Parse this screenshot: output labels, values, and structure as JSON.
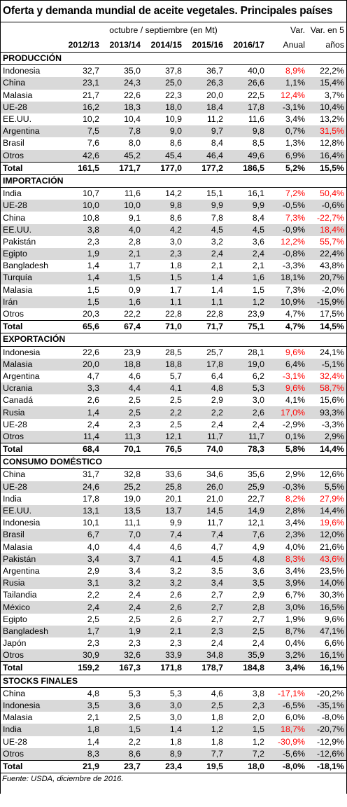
{
  "title": "Oferta y demanda mundial de aceite vegetales. Principales países",
  "header": {
    "period_label": "octubre / septiembre (en Mt)",
    "var_label": "Var.",
    "var5_label": "Var. en 5",
    "years": [
      "2012/13",
      "2013/14",
      "2014/15",
      "2015/16",
      "2016/17"
    ],
    "anual_label": "Anual",
    "anos_label": "años"
  },
  "sections": [
    {
      "name": "PRODUCCIÓN",
      "rows": [
        {
          "label": "Indonesia",
          "values": [
            "32,7",
            "35,0",
            "37,8",
            "36,7",
            "40,0"
          ],
          "anual": "8,9%",
          "anual_red": true,
          "var5": "22,2%",
          "var5_red": false
        },
        {
          "label": "China",
          "values": [
            "23,1",
            "24,3",
            "25,0",
            "26,3",
            "26,6"
          ],
          "anual": "1,1%",
          "anual_red": false,
          "var5": "15,4%",
          "var5_red": false
        },
        {
          "label": "Malasia",
          "values": [
            "21,7",
            "22,6",
            "22,3",
            "20,0",
            "22,5"
          ],
          "anual": "12,4%",
          "anual_red": true,
          "var5": "3,7%",
          "var5_red": false
        },
        {
          "label": "UE-28",
          "values": [
            "16,2",
            "18,3",
            "18,0",
            "18,4",
            "17,8"
          ],
          "anual": "-3,1%",
          "anual_red": false,
          "var5": "10,4%",
          "var5_red": false
        },
        {
          "label": "EE.UU.",
          "values": [
            "10,2",
            "10,4",
            "10,9",
            "11,2",
            "11,6"
          ],
          "anual": "3,4%",
          "anual_red": false,
          "var5": "13,2%",
          "var5_red": false
        },
        {
          "label": "Argentina",
          "values": [
            "7,5",
            "7,8",
            "9,0",
            "9,7",
            "9,8"
          ],
          "anual": "0,7%",
          "anual_red": false,
          "var5": "31,5%",
          "var5_red": true
        },
        {
          "label": "Brasil",
          "values": [
            "7,6",
            "8,0",
            "8,6",
            "8,4",
            "8,5"
          ],
          "anual": "1,3%",
          "anual_red": false,
          "var5": "12,8%",
          "var5_red": false
        },
        {
          "label": "Otros",
          "values": [
            "42,6",
            "45,2",
            "45,4",
            "46,4",
            "49,6"
          ],
          "anual": "6,9%",
          "anual_red": false,
          "var5": "16,4%",
          "var5_red": false
        }
      ],
      "total": {
        "label": "Total",
        "values": [
          "161,5",
          "171,7",
          "177,0",
          "177,2",
          "186,5"
        ],
        "anual": "5,2%",
        "var5": "15,5%"
      }
    },
    {
      "name": "IMPORTACIÓN",
      "rows": [
        {
          "label": "India",
          "values": [
            "10,7",
            "11,6",
            "14,2",
            "15,1",
            "16,1"
          ],
          "anual": "7,2%",
          "anual_red": true,
          "var5": "50,4%",
          "var5_red": true
        },
        {
          "label": "UE-28",
          "values": [
            "10,0",
            "10,0",
            "9,8",
            "9,9",
            "9,9"
          ],
          "anual": "-0,5%",
          "anual_red": false,
          "var5": "-0,6%",
          "var5_red": false
        },
        {
          "label": "China",
          "values": [
            "10,8",
            "9,1",
            "8,6",
            "7,8",
            "8,4"
          ],
          "anual": "7,3%",
          "anual_red": true,
          "var5": "-22,7%",
          "var5_red": true
        },
        {
          "label": "EE.UU.",
          "values": [
            "3,8",
            "4,0",
            "4,2",
            "4,5",
            "4,5"
          ],
          "anual": "-0,9%",
          "anual_red": false,
          "var5": "18,4%",
          "var5_red": true
        },
        {
          "label": "Pakistán",
          "values": [
            "2,3",
            "2,8",
            "3,0",
            "3,2",
            "3,6"
          ],
          "anual": "12,2%",
          "anual_red": true,
          "var5": "55,7%",
          "var5_red": true
        },
        {
          "label": "Egipto",
          "values": [
            "1,9",
            "2,1",
            "2,3",
            "2,4",
            "2,4"
          ],
          "anual": "-0,8%",
          "anual_red": false,
          "var5": "22,4%",
          "var5_red": false
        },
        {
          "label": "Bangladesh",
          "values": [
            "1,4",
            "1,7",
            "1,8",
            "2,1",
            "2,1"
          ],
          "anual": "-3,3%",
          "anual_red": false,
          "var5": "43,8%",
          "var5_red": false
        },
        {
          "label": "Turquía",
          "values": [
            "1,4",
            "1,5",
            "1,5",
            "1,4",
            "1,6"
          ],
          "anual": "18,1%",
          "anual_red": false,
          "var5": "20,7%",
          "var5_red": false
        },
        {
          "label": "Malasia",
          "values": [
            "1,5",
            "0,9",
            "1,7",
            "1,4",
            "1,5"
          ],
          "anual": "7,3%",
          "anual_red": false,
          "var5": "-2,0%",
          "var5_red": false
        },
        {
          "label": "Irán",
          "values": [
            "1,5",
            "1,6",
            "1,1",
            "1,1",
            "1,2"
          ],
          "anual": "10,9%",
          "anual_red": false,
          "var5": "-15,9%",
          "var5_red": false
        },
        {
          "label": "Otros",
          "values": [
            "20,3",
            "22,2",
            "22,8",
            "22,8",
            "23,9"
          ],
          "anual": "4,7%",
          "anual_red": false,
          "var5": "17,5%",
          "var5_red": false
        }
      ],
      "total": {
        "label": "Total",
        "values": [
          "65,6",
          "67,4",
          "71,0",
          "71,7",
          "75,1"
        ],
        "anual": "4,7%",
        "var5": "14,5%"
      }
    },
    {
      "name": "EXPORTACIÓN",
      "rows": [
        {
          "label": "Indonesia",
          "values": [
            "22,6",
            "23,9",
            "28,5",
            "25,7",
            "28,1"
          ],
          "anual": "9,6%",
          "anual_red": true,
          "var5": "24,1%",
          "var5_red": false
        },
        {
          "label": "Malasia",
          "values": [
            "20,0",
            "18,8",
            "18,8",
            "17,8",
            "19,0"
          ],
          "anual": "6,4%",
          "anual_red": false,
          "var5": "-5,1%",
          "var5_red": false
        },
        {
          "label": "Argentina",
          "values": [
            "4,7",
            "4,6",
            "5,7",
            "6,4",
            "6,2"
          ],
          "anual": "-3,1%",
          "anual_red": true,
          "var5": "32,4%",
          "var5_red": true
        },
        {
          "label": "Ucrania",
          "values": [
            "3,3",
            "4,4",
            "4,1",
            "4,8",
            "5,3"
          ],
          "anual": "9,6%",
          "anual_red": true,
          "var5": "58,7%",
          "var5_red": true
        },
        {
          "label": "Canadá",
          "values": [
            "2,6",
            "2,5",
            "2,5",
            "2,9",
            "3,0"
          ],
          "anual": "4,1%",
          "anual_red": false,
          "var5": "15,6%",
          "var5_red": false
        },
        {
          "label": "Rusia",
          "values": [
            "1,4",
            "2,5",
            "2,2",
            "2,2",
            "2,6"
          ],
          "anual": "17,0%",
          "anual_red": true,
          "var5": "93,3%",
          "var5_red": false
        },
        {
          "label": "UE-28",
          "values": [
            "2,4",
            "2,3",
            "2,5",
            "2,4",
            "2,4"
          ],
          "anual": "-2,9%",
          "anual_red": false,
          "var5": "-3,3%",
          "var5_red": false
        },
        {
          "label": "Otros",
          "values": [
            "11,4",
            "11,3",
            "12,1",
            "11,7",
            "11,7"
          ],
          "anual": "0,1%",
          "anual_red": false,
          "var5": "2,9%",
          "var5_red": false
        }
      ],
      "total": {
        "label": "Total",
        "values": [
          "68,4",
          "70,1",
          "76,5",
          "74,0",
          "78,3"
        ],
        "anual": "5,8%",
        "var5": "14,4%"
      }
    },
    {
      "name": "CONSUMO DOMÉSTICO",
      "rows": [
        {
          "label": "China",
          "values": [
            "31,7",
            "32,8",
            "33,6",
            "34,6",
            "35,6"
          ],
          "anual": "2,9%",
          "anual_red": false,
          "var5": "12,6%",
          "var5_red": false
        },
        {
          "label": "UE-28",
          "values": [
            "24,6",
            "25,2",
            "25,8",
            "26,0",
            "25,9"
          ],
          "anual": "-0,3%",
          "anual_red": false,
          "var5": "5,5%",
          "var5_red": false
        },
        {
          "label": "India",
          "values": [
            "17,8",
            "19,0",
            "20,1",
            "21,0",
            "22,7"
          ],
          "anual": "8,2%",
          "anual_red": true,
          "var5": "27,9%",
          "var5_red": true
        },
        {
          "label": "EE.UU.",
          "values": [
            "13,1",
            "13,5",
            "13,7",
            "14,5",
            "14,9"
          ],
          "anual": "2,8%",
          "anual_red": false,
          "var5": "14,4%",
          "var5_red": false
        },
        {
          "label": "Indonesia",
          "values": [
            "10,1",
            "11,1",
            "9,9",
            "11,7",
            "12,1"
          ],
          "anual": "3,4%",
          "anual_red": false,
          "var5": "19,6%",
          "var5_red": true
        },
        {
          "label": "Brasil",
          "values": [
            "6,7",
            "7,0",
            "7,4",
            "7,4",
            "7,6"
          ],
          "anual": "2,3%",
          "anual_red": false,
          "var5": "12,0%",
          "var5_red": false
        },
        {
          "label": "Malasia",
          "values": [
            "4,0",
            "4,4",
            "4,6",
            "4,7",
            "4,9"
          ],
          "anual": "4,0%",
          "anual_red": false,
          "var5": "21,6%",
          "var5_red": false
        },
        {
          "label": "Pakistán",
          "values": [
            "3,4",
            "3,7",
            "4,1",
            "4,5",
            "4,8"
          ],
          "anual": "8,3%",
          "anual_red": true,
          "var5": "43,6%",
          "var5_red": true
        },
        {
          "label": "Argentina",
          "values": [
            "2,9",
            "3,4",
            "3,2",
            "3,5",
            "3,6"
          ],
          "anual": "3,4%",
          "anual_red": false,
          "var5": "23,5%",
          "var5_red": false
        },
        {
          "label": "Rusia",
          "values": [
            "3,1",
            "3,2",
            "3,2",
            "3,4",
            "3,5"
          ],
          "anual": "3,9%",
          "anual_red": false,
          "var5": "14,0%",
          "var5_red": false
        },
        {
          "label": "Tailandia",
          "values": [
            "2,2",
            "2,4",
            "2,6",
            "2,7",
            "2,9"
          ],
          "anual": "6,7%",
          "anual_red": false,
          "var5": "30,3%",
          "var5_red": false
        },
        {
          "label": "México",
          "values": [
            "2,4",
            "2,4",
            "2,6",
            "2,7",
            "2,8"
          ],
          "anual": "3,0%",
          "anual_red": false,
          "var5": "16,5%",
          "var5_red": false
        },
        {
          "label": "Egipto",
          "values": [
            "2,5",
            "2,5",
            "2,6",
            "2,7",
            "2,7"
          ],
          "anual": "1,9%",
          "anual_red": false,
          "var5": "9,6%",
          "var5_red": false
        },
        {
          "label": "Bangladesh",
          "values": [
            "1,7",
            "1,9",
            "2,1",
            "2,3",
            "2,5"
          ],
          "anual": "8,7%",
          "anual_red": false,
          "var5": "47,1%",
          "var5_red": false
        },
        {
          "label": "Japón",
          "values": [
            "2,3",
            "2,3",
            "2,3",
            "2,4",
            "2,4"
          ],
          "anual": "0,4%",
          "anual_red": false,
          "var5": "6,6%",
          "var5_red": false
        },
        {
          "label": "Otros",
          "values": [
            "30,9",
            "32,6",
            "33,9",
            "34,8",
            "35,9"
          ],
          "anual": "3,2%",
          "anual_red": false,
          "var5": "16,1%",
          "var5_red": false
        }
      ],
      "total": {
        "label": "Total",
        "values": [
          "159,2",
          "167,3",
          "171,8",
          "178,7",
          "184,8"
        ],
        "anual": "3,4%",
        "var5": "16,1%"
      }
    },
    {
      "name": "STOCKS FINALES",
      "rows": [
        {
          "label": "China",
          "values": [
            "4,8",
            "5,3",
            "5,3",
            "4,6",
            "3,8"
          ],
          "anual": "-17,1%",
          "anual_red": true,
          "var5": "-20,2%",
          "var5_red": false
        },
        {
          "label": "Indonesia",
          "values": [
            "3,5",
            "3,6",
            "3,0",
            "2,5",
            "2,3"
          ],
          "anual": "-6,5%",
          "anual_red": false,
          "var5": "-35,1%",
          "var5_red": false
        },
        {
          "label": "Malasia",
          "values": [
            "2,1",
            "2,5",
            "3,0",
            "1,8",
            "2,0"
          ],
          "anual": "6,0%",
          "anual_red": false,
          "var5": "-8,0%",
          "var5_red": false
        },
        {
          "label": "India",
          "values": [
            "1,8",
            "1,5",
            "1,4",
            "1,2",
            "1,5"
          ],
          "anual": "18,7%",
          "anual_red": true,
          "var5": "-20,7%",
          "var5_red": false
        },
        {
          "label": "UE-28",
          "values": [
            "1,4",
            "2,2",
            "1,8",
            "1,8",
            "1,2"
          ],
          "anual": "-30,9%",
          "anual_red": true,
          "var5": "-12,9%",
          "var5_red": false
        },
        {
          "label": "Otros",
          "values": [
            "8,3",
            "8,6",
            "8,9",
            "7,7",
            "7,2"
          ],
          "anual": "-5,6%",
          "anual_red": false,
          "var5": "-12,6%",
          "var5_red": false
        }
      ],
      "total": {
        "label": "Total",
        "values": [
          "21,9",
          "23,7",
          "23,4",
          "19,5",
          "18,0"
        ],
        "anual": "-8,0%",
        "var5": "-18,1%"
      }
    }
  ],
  "source": "Fuente: USDA, diciembre de 2016."
}
